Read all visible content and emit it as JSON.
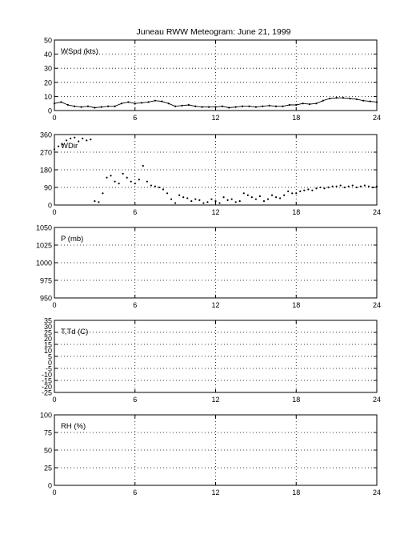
{
  "figure": {
    "title": "Juneau RWW Meteogram:        June 21, 1999",
    "background": "#ffffff",
    "line_color": "#000000",
    "grid_style": "dotted"
  },
  "chart_data": [
    {
      "type": "scatter",
      "panel_label": "WSpd (kts)",
      "xlabel": "",
      "ylabel": "",
      "xlim": [
        0,
        24
      ],
      "ylim": [
        0,
        50
      ],
      "xticks": [
        0,
        6,
        12,
        18,
        24
      ],
      "yticks": [
        0,
        10,
        20,
        30,
        40,
        50
      ],
      "grid": true,
      "series": [
        {
          "x": [
            0,
            0.5,
            1,
            1.5,
            2,
            2.5,
            3,
            3.5,
            4,
            4.5,
            5,
            5.5,
            6,
            6.5,
            7,
            7.5,
            8,
            8.5,
            9,
            9.5,
            10,
            10.5,
            11,
            11.5,
            12,
            12.5,
            13,
            13.5,
            14,
            14.5,
            15,
            15.5,
            16,
            16.5,
            17,
            17.5,
            18,
            18.5,
            19,
            19.5,
            20,
            20.5,
            21,
            21.5,
            22,
            22.5,
            23,
            23.5,
            24
          ],
          "values": [
            5,
            6,
            4,
            3,
            2.5,
            3,
            2,
            2.5,
            3,
            3,
            5,
            6,
            5,
            5.5,
            6,
            7,
            6.5,
            5,
            3,
            3.5,
            4,
            3,
            2.5,
            2.5,
            2.5,
            3,
            2,
            2.5,
            3,
            3,
            2.5,
            3,
            3.5,
            3,
            3,
            4,
            4,
            5,
            4.5,
            5,
            7,
            8.5,
            9,
            9,
            8.5,
            8,
            7,
            6.5,
            6
          ]
        }
      ]
    },
    {
      "type": "scatter",
      "panel_label": "WDir",
      "xlabel": "",
      "ylabel": "",
      "xlim": [
        0,
        24
      ],
      "ylim": [
        0,
        360
      ],
      "xticks": [
        0,
        6,
        12,
        18,
        24
      ],
      "yticks": [
        0,
        90,
        180,
        270,
        360
      ],
      "grid": true,
      "series": [
        {
          "x": [
            0,
            0.3,
            0.6,
            0.9,
            1.2,
            1.5,
            1.8,
            2.1,
            2.4,
            2.7,
            3.0,
            3.3,
            3.6,
            3.9,
            4.2,
            4.5,
            4.8,
            5.1,
            5.4,
            5.7,
            6.0,
            6.3,
            6.6,
            6.9,
            7.2,
            7.5,
            7.8,
            8.1,
            8.4,
            8.7,
            9.0,
            9.3,
            9.6,
            9.9,
            10.2,
            10.5,
            10.8,
            11.1,
            11.4,
            11.7,
            12.0,
            12.3,
            12.6,
            12.9,
            13.2,
            13.5,
            13.8,
            14.1,
            14.4,
            14.7,
            15.0,
            15.3,
            15.6,
            15.9,
            16.2,
            16.5,
            16.8,
            17.1,
            17.4,
            17.7,
            18.0,
            18.3,
            18.6,
            18.9,
            19.2,
            19.5,
            19.8,
            20.1,
            20.4,
            20.7,
            21.0,
            21.3,
            21.6,
            21.9,
            22.2,
            22.5,
            22.8,
            23.1,
            23.4,
            23.7,
            24.0
          ],
          "values": [
            285,
            300,
            310,
            330,
            340,
            345,
            325,
            340,
            330,
            335,
            20,
            15,
            60,
            140,
            150,
            120,
            110,
            160,
            140,
            120,
            110,
            130,
            200,
            120,
            100,
            95,
            90,
            80,
            60,
            30,
            10,
            50,
            40,
            35,
            20,
            30,
            25,
            10,
            15,
            30,
            20,
            10,
            40,
            25,
            30,
            15,
            20,
            60,
            50,
            40,
            30,
            45,
            20,
            30,
            50,
            40,
            35,
            50,
            70,
            60,
            60,
            70,
            75,
            80,
            75,
            85,
            90,
            85,
            90,
            95,
            95,
            100,
            90,
            95,
            100,
            90,
            95,
            100,
            95,
            90,
            95
          ]
        }
      ]
    },
    {
      "type": "line",
      "panel_label": "P (mb)",
      "xlabel": "",
      "ylabel": "",
      "xlim": [
        0,
        24
      ],
      "ylim": [
        950,
        1050
      ],
      "xticks": [
        0,
        6,
        12,
        18,
        24
      ],
      "yticks": [
        950,
        975,
        1000,
        1025,
        1050
      ],
      "grid": true,
      "series": []
    },
    {
      "type": "line",
      "panel_label": "T,Td (C)",
      "xlabel": "",
      "ylabel": "",
      "xlim": [
        0,
        24
      ],
      "ylim": [
        -25,
        35
      ],
      "xticks": [
        0,
        6,
        12,
        18,
        24
      ],
      "yticks": [
        -25,
        -15,
        -5,
        5,
        15,
        25,
        35
      ],
      "yticklabels": [
        "-25",
        "-15",
        "-5",
        "5",
        "15",
        "25",
        "35"
      ],
      "extra_ytick_labels": [
        "-20",
        "-10",
        "0",
        "10",
        "20",
        "30"
      ],
      "grid": true,
      "series": []
    },
    {
      "type": "line",
      "panel_label": "RH (%)",
      "xlabel": "",
      "ylabel": "",
      "xlim": [
        0,
        24
      ],
      "ylim": [
        0,
        100
      ],
      "xticks": [
        0,
        6,
        12,
        18,
        24
      ],
      "yticks": [
        0,
        25,
        50,
        75,
        100
      ],
      "grid": true,
      "series": []
    }
  ]
}
